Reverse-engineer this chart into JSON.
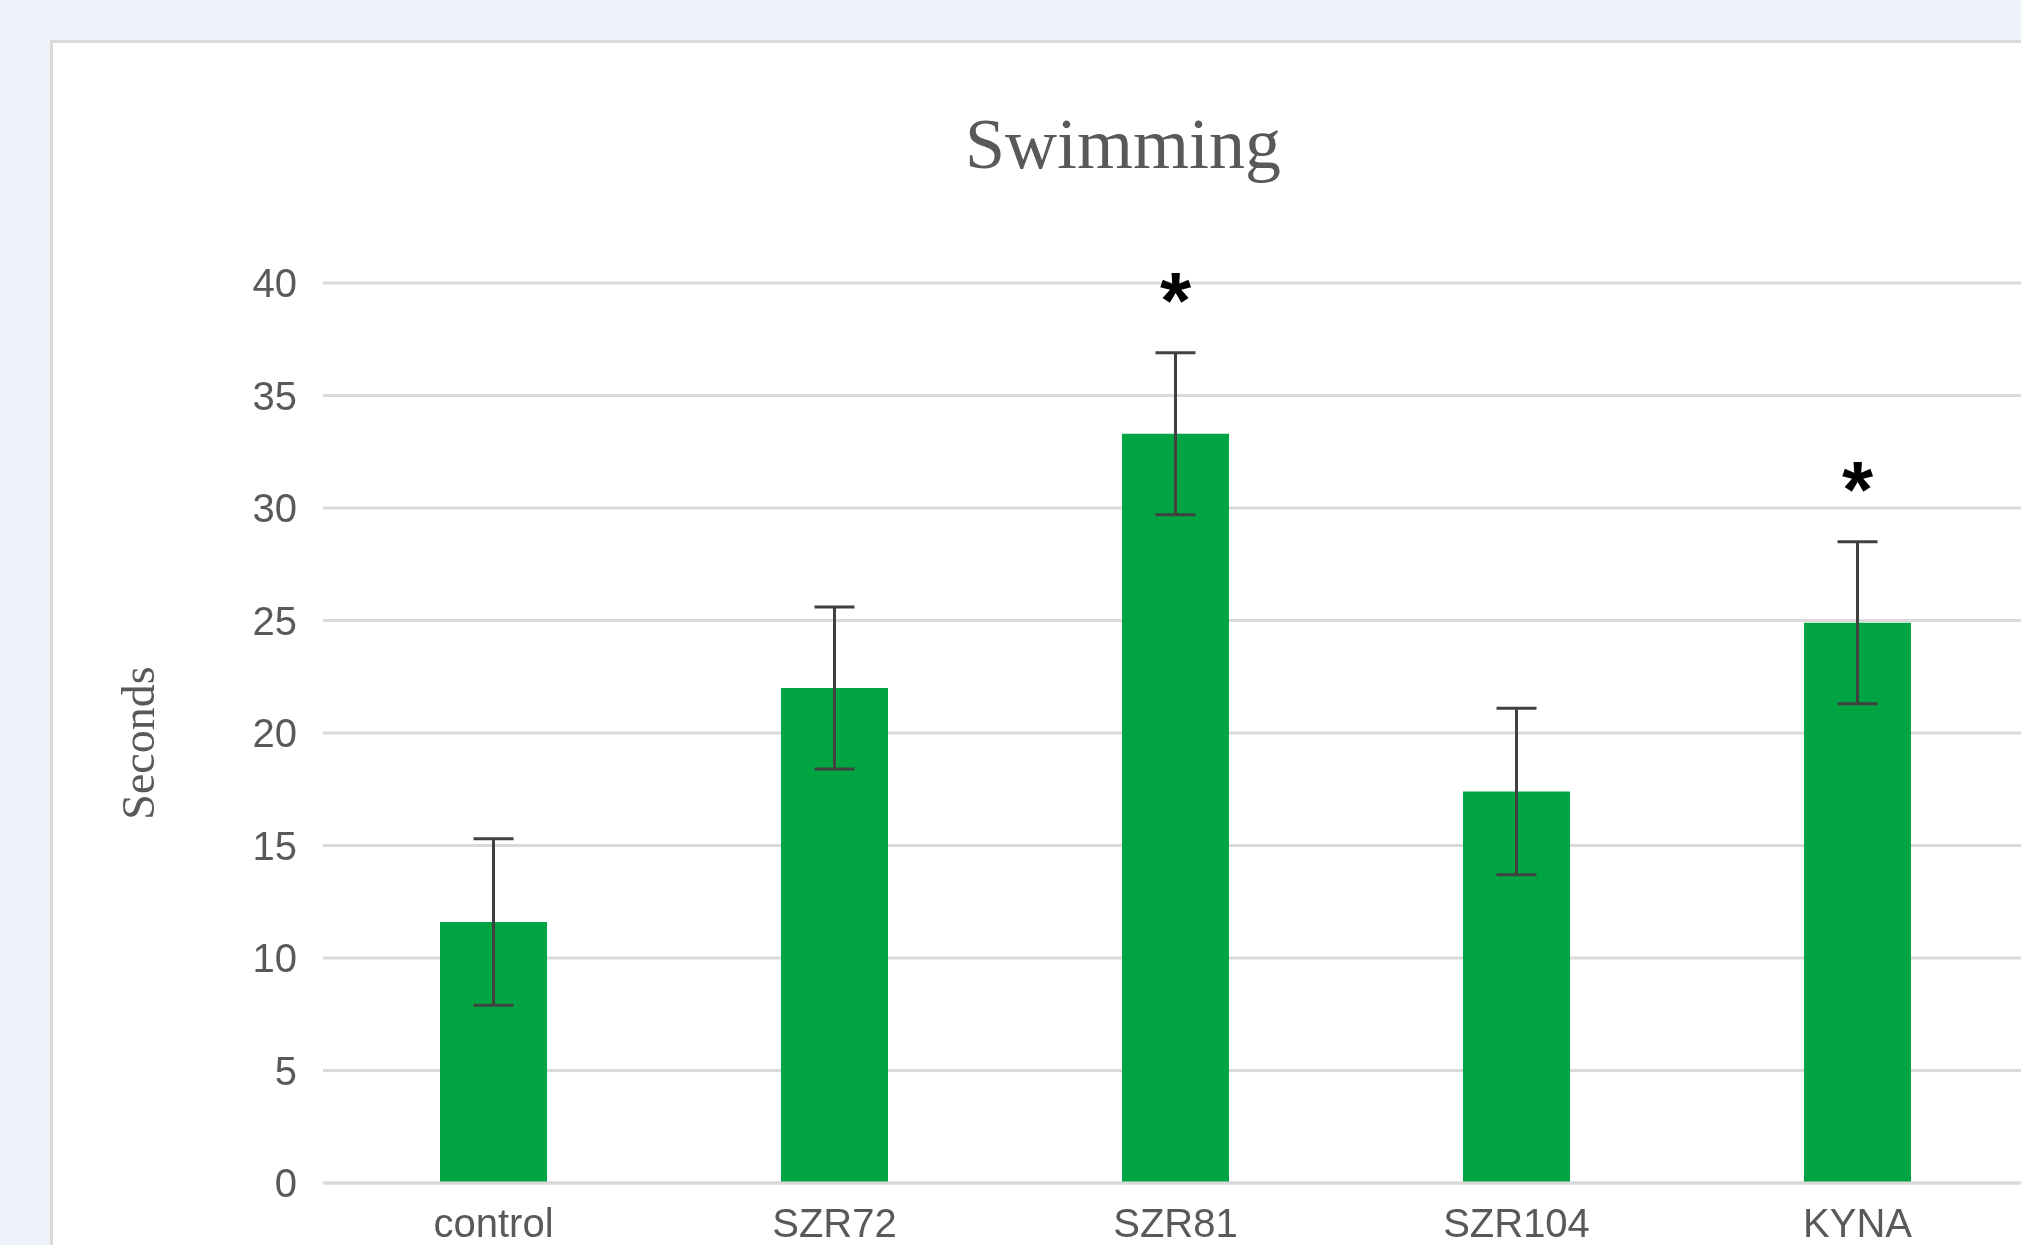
{
  "chart_data": {
    "type": "bar",
    "title": "Swimming",
    "ylabel": "Seconds",
    "categories": [
      "control",
      "SZR72",
      "SZR81",
      "SZR104",
      "KYNA"
    ],
    "values": [
      11.6,
      22.0,
      33.3,
      17.4,
      24.9
    ],
    "errors": [
      3.7,
      3.6,
      3.6,
      3.7,
      3.6
    ],
    "color": "#00a443",
    "ylim": [
      0,
      40
    ],
    "yticks": [
      0,
      5,
      10,
      15,
      20,
      25,
      30,
      35,
      40
    ],
    "grid": "y",
    "annotations": [
      {
        "text": "*",
        "x": "SZR81",
        "y": 33.3
      },
      {
        "text": "*",
        "x": "KYNA",
        "y": 24.9
      }
    ]
  }
}
